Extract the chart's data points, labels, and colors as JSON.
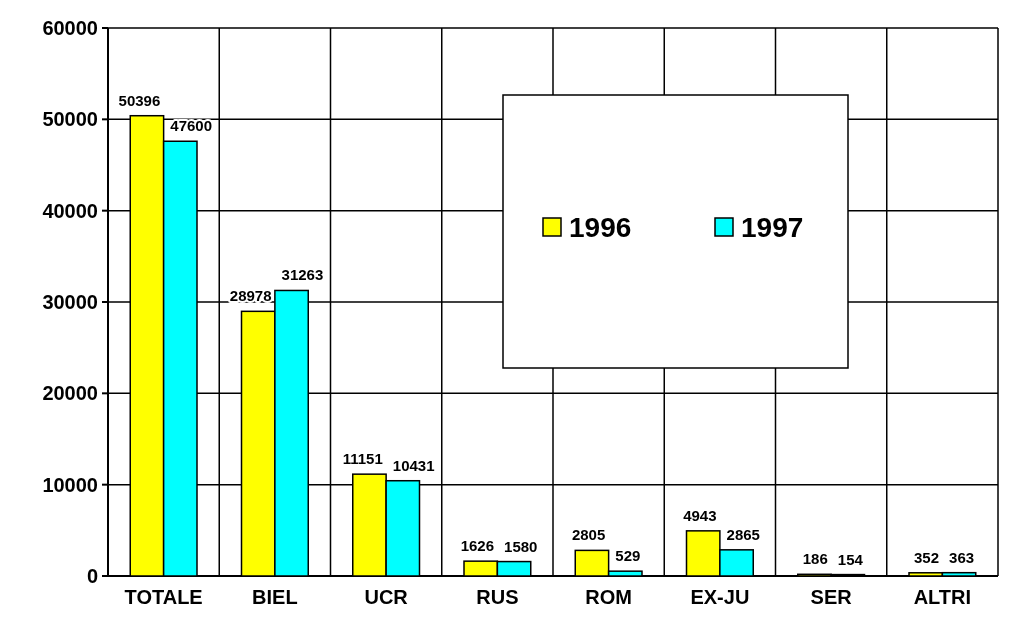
{
  "chart_data": {
    "type": "bar",
    "categories": [
      "TOTALE",
      "BIEL",
      "UCR",
      "RUS",
      "ROM",
      "EX-JU",
      "SER",
      "ALTRI"
    ],
    "series": [
      {
        "name": "1996",
        "color": "#ffff00",
        "values": [
          50396,
          28978,
          11151,
          1626,
          2805,
          4943,
          186,
          352
        ]
      },
      {
        "name": "1997",
        "color": "#00ffff",
        "values": [
          47600,
          31263,
          10431,
          1580,
          529,
          2865,
          154,
          363
        ]
      }
    ],
    "ylim": [
      0,
      60000
    ],
    "yticks": [
      0,
      10000,
      20000,
      30000,
      40000,
      50000,
      60000
    ],
    "grid": true,
    "legend": "top right",
    "data_labels": true
  }
}
